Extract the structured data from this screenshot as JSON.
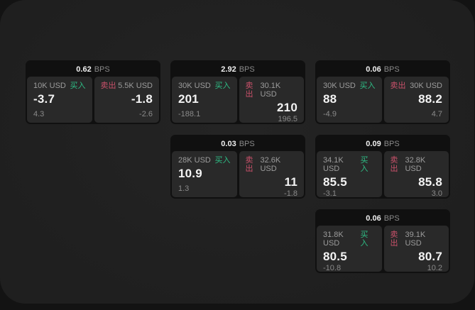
{
  "labels": {
    "bps_unit": "BPS",
    "buy": "买入",
    "sell": "卖出"
  },
  "colors": {
    "buy_green": "#2EBD85",
    "sell_red": "#C9516A",
    "window_bg": "#212121",
    "card_bg": "#101010",
    "panel_bg": "#292929"
  },
  "cards": [
    {
      "bps": "0.62",
      "buy": {
        "amount": "10K USD",
        "price": "-3.7",
        "sub": "4.3"
      },
      "sell": {
        "amount": "5.5K USD",
        "price": "-1.8",
        "sub": "-2.6"
      }
    },
    {
      "bps": "2.92",
      "buy": {
        "amount": "30K USD",
        "price": "201",
        "sub": "-188.1"
      },
      "sell": {
        "amount": "30.1K USD",
        "price": "210",
        "sub": "196.5"
      }
    },
    {
      "bps": "0.06",
      "buy": {
        "amount": "30K USD",
        "price": "88",
        "sub": "-4.9"
      },
      "sell": {
        "amount": "30K USD",
        "price": "88.2",
        "sub": "4.7"
      }
    },
    {
      "bps": "0.03",
      "buy": {
        "amount": "28K USD",
        "price": "10.9",
        "sub": "1.3"
      },
      "sell": {
        "amount": "32.6K USD",
        "price": "11",
        "sub": "-1.8"
      }
    },
    {
      "bps": "0.09",
      "buy": {
        "amount": "34.1K USD",
        "price": "85.5",
        "sub": "-3.1"
      },
      "sell": {
        "amount": "32.8K USD",
        "price": "85.8",
        "sub": "3.0"
      }
    },
    {
      "bps": "0.06",
      "buy": {
        "amount": "31.8K USD",
        "price": "80.5",
        "sub": "-10.8"
      },
      "sell": {
        "amount": "39.1K USD",
        "price": "80.7",
        "sub": "10.2"
      }
    }
  ]
}
